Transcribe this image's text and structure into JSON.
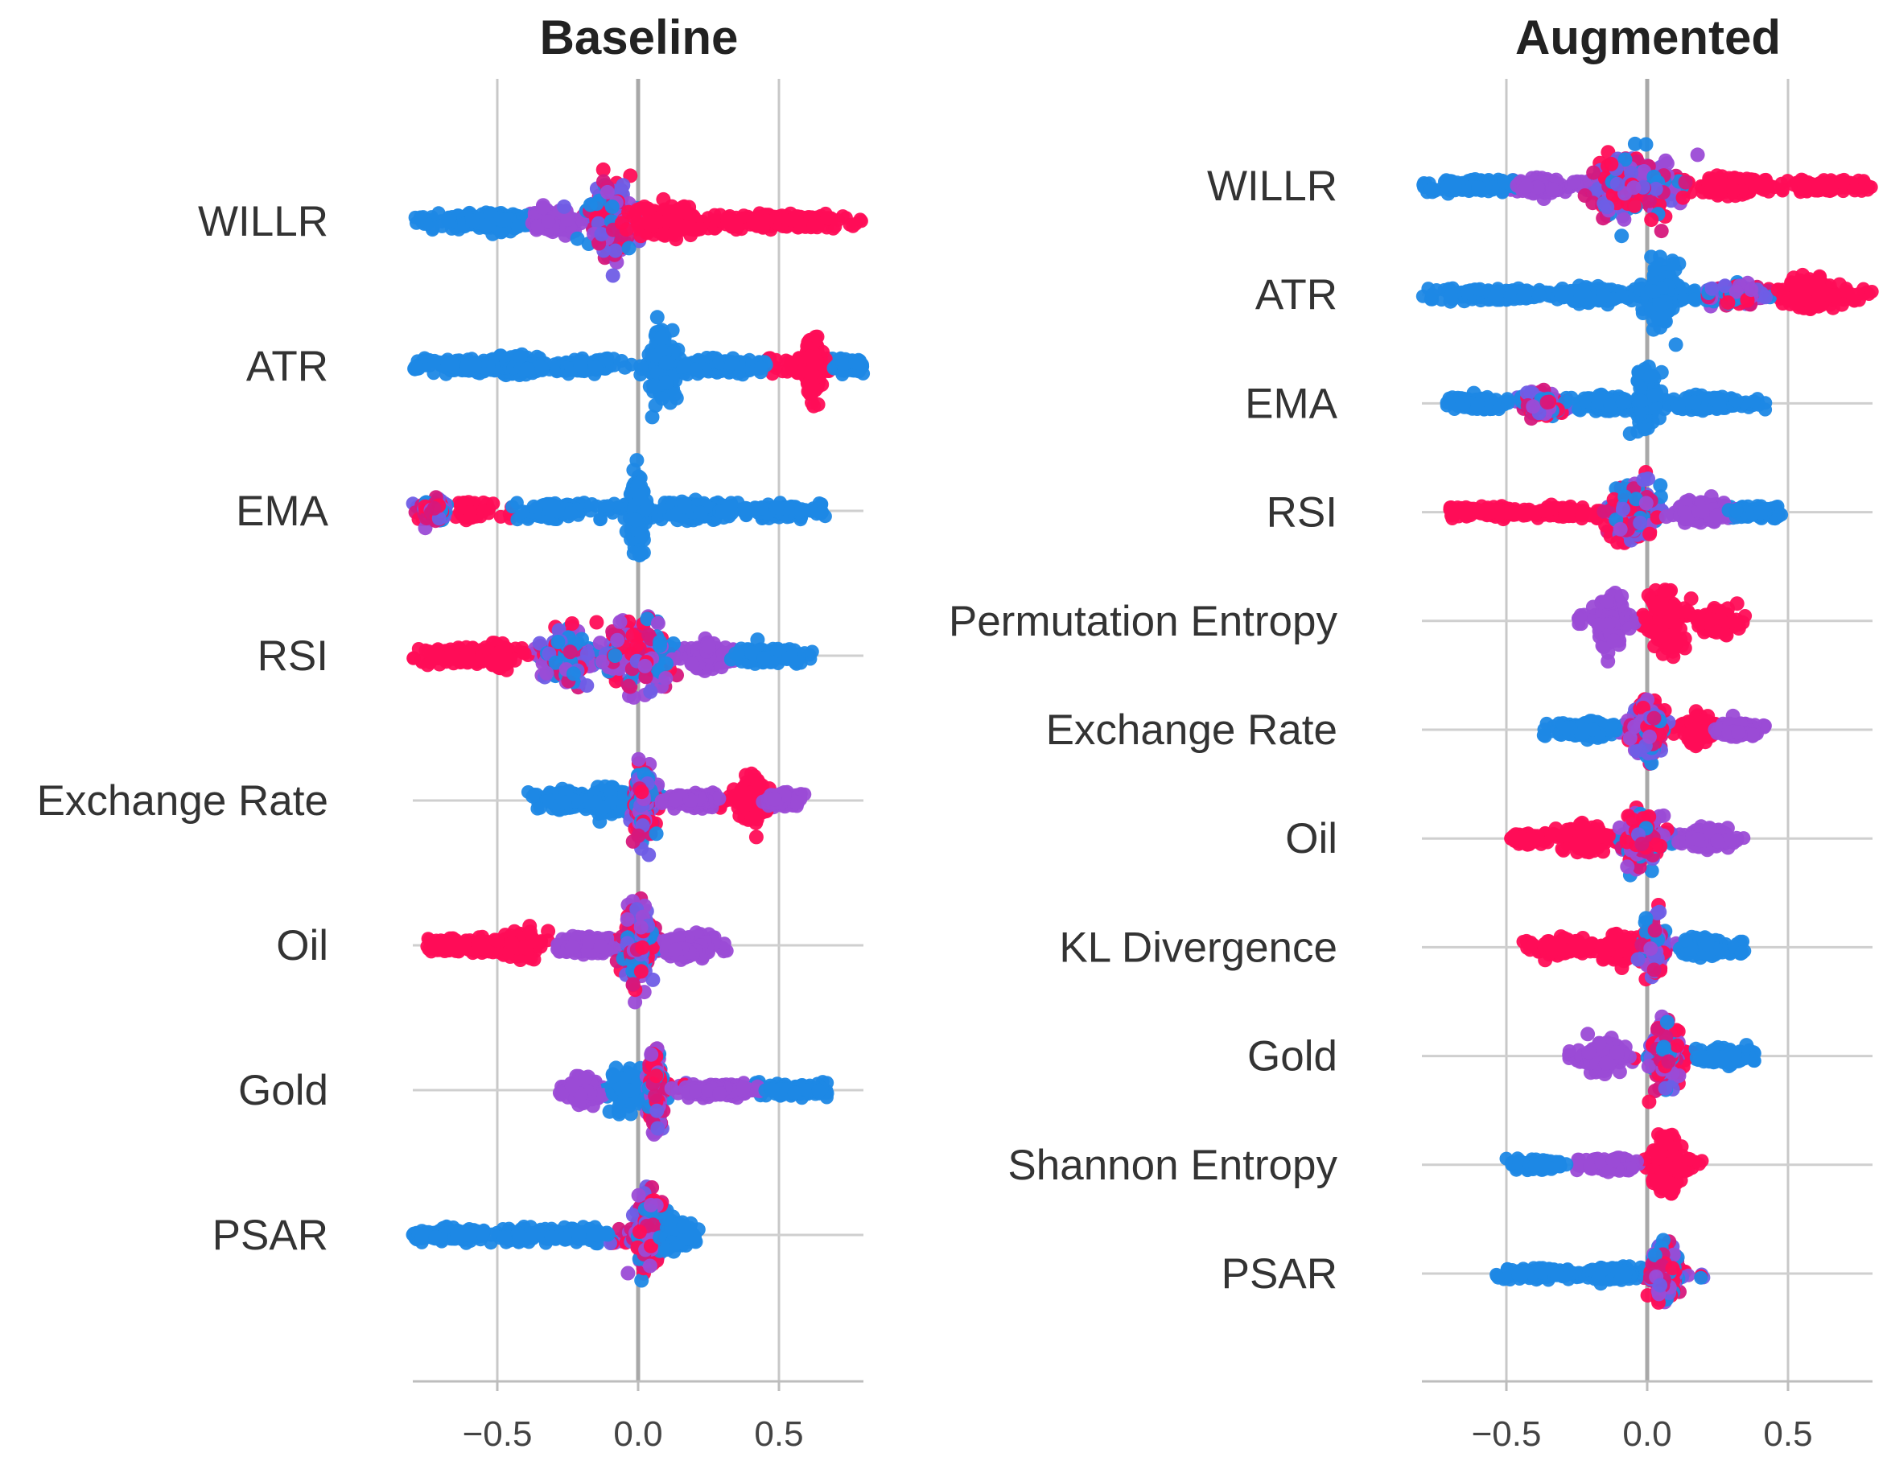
{
  "chart_data": [
    {
      "type": "scatter",
      "subtype": "beeswarm",
      "title": "Baseline",
      "xlim": [
        -0.8,
        0.8
      ],
      "xticks": [
        -0.5,
        0.0,
        0.5
      ],
      "xtick_labels": [
        "−0.5",
        "0.0",
        "0.5"
      ],
      "features": [
        {
          "name": "WILLR",
          "min": -0.8,
          "max": 0.8,
          "clusters": [
            {
              "c": -0.5,
              "s": 0.18,
              "h": 0.07,
              "color": "blue"
            },
            {
              "c": -0.3,
              "s": 0.08,
              "h": 0.1,
              "color": "purple"
            },
            {
              "c": -0.1,
              "s": 0.09,
              "h": 0.36,
              "color": "mix"
            },
            {
              "c": 0.1,
              "s": 0.12,
              "h": 0.16,
              "color": "pink"
            },
            {
              "c": 0.5,
              "s": 0.18,
              "h": 0.06,
              "color": "pink"
            }
          ]
        },
        {
          "name": "ATR",
          "min": -0.8,
          "max": 0.8,
          "clusters": [
            {
              "c": -0.6,
              "s": 0.12,
              "h": 0.05,
              "color": "blue"
            },
            {
              "c": -0.42,
              "s": 0.08,
              "h": 0.09,
              "color": "blue"
            },
            {
              "c": -0.2,
              "s": 0.1,
              "h": 0.05,
              "color": "blue"
            },
            {
              "c": 0.08,
              "s": 0.05,
              "h": 0.34,
              "color": "blue"
            },
            {
              "c": 0.3,
              "s": 0.12,
              "h": 0.06,
              "color": "blue"
            },
            {
              "c": 0.62,
              "s": 0.03,
              "h": 0.32,
              "color": "pink"
            },
            {
              "c": 0.75,
              "s": 0.04,
              "h": 0.05,
              "color": "blue"
            }
          ]
        },
        {
          "name": "EMA",
          "min": -0.8,
          "max": 0.68,
          "clusters": [
            {
              "c": -0.72,
              "s": 0.04,
              "h": 0.1,
              "color": "mix"
            },
            {
              "c": -0.6,
              "s": 0.03,
              "h": 0.08,
              "color": "pink"
            },
            {
              "c": -0.3,
              "s": 0.08,
              "h": 0.07,
              "color": "blue"
            },
            {
              "c": 0.0,
              "s": 0.03,
              "h": 0.36,
              "color": "blue"
            },
            {
              "c": 0.2,
              "s": 0.12,
              "h": 0.08,
              "color": "blue"
            },
            {
              "c": 0.5,
              "s": 0.1,
              "h": 0.04,
              "color": "blue"
            }
          ]
        },
        {
          "name": "RSI",
          "min": -0.8,
          "max": 0.62,
          "clusters": [
            {
              "c": -0.62,
              "s": 0.12,
              "h": 0.06,
              "color": "pink"
            },
            {
              "c": -0.5,
              "s": 0.05,
              "h": 0.11,
              "color": "pink"
            },
            {
              "c": -0.25,
              "s": 0.08,
              "h": 0.28,
              "color": "mix"
            },
            {
              "c": 0.0,
              "s": 0.14,
              "h": 0.34,
              "color": "mix"
            },
            {
              "c": 0.25,
              "s": 0.07,
              "h": 0.14,
              "color": "purple"
            },
            {
              "c": 0.45,
              "s": 0.1,
              "h": 0.07,
              "color": "blue"
            }
          ]
        },
        {
          "name": "Exchange Rate",
          "min": -0.4,
          "max": 0.6,
          "clusters": [
            {
              "c": -0.25,
              "s": 0.08,
              "h": 0.08,
              "color": "blue"
            },
            {
              "c": -0.1,
              "s": 0.06,
              "h": 0.14,
              "color": "blue"
            },
            {
              "c": 0.02,
              "s": 0.04,
              "h": 0.4,
              "color": "mix"
            },
            {
              "c": 0.18,
              "s": 0.08,
              "h": 0.06,
              "color": "purple"
            },
            {
              "c": 0.4,
              "s": 0.05,
              "h": 0.2,
              "color": "pink"
            },
            {
              "c": 0.52,
              "s": 0.06,
              "h": 0.06,
              "color": "purple"
            }
          ]
        },
        {
          "name": "Oil",
          "min": -0.75,
          "max": 0.32,
          "clusters": [
            {
              "c": -0.62,
              "s": 0.1,
              "h": 0.05,
              "color": "pink"
            },
            {
              "c": -0.42,
              "s": 0.07,
              "h": 0.13,
              "color": "pink"
            },
            {
              "c": -0.18,
              "s": 0.1,
              "h": 0.08,
              "color": "purple"
            },
            {
              "c": 0.0,
              "s": 0.06,
              "h": 0.36,
              "color": "mix"
            },
            {
              "c": 0.18,
              "s": 0.08,
              "h": 0.1,
              "color": "purple"
            }
          ]
        },
        {
          "name": "Gold",
          "min": -0.28,
          "max": 0.68,
          "clusters": [
            {
              "c": -0.2,
              "s": 0.06,
              "h": 0.12,
              "color": "purple"
            },
            {
              "c": -0.04,
              "s": 0.05,
              "h": 0.18,
              "color": "blue"
            },
            {
              "c": 0.06,
              "s": 0.03,
              "h": 0.36,
              "color": "mix"
            },
            {
              "c": 0.28,
              "s": 0.14,
              "h": 0.05,
              "color": "purple"
            },
            {
              "c": 0.55,
              "s": 0.1,
              "h": 0.04,
              "color": "blue"
            }
          ]
        },
        {
          "name": "PSAR",
          "min": -0.8,
          "max": 0.22,
          "clusters": [
            {
              "c": -0.65,
              "s": 0.14,
              "h": 0.04,
              "color": "blue"
            },
            {
              "c": -0.3,
              "s": 0.15,
              "h": 0.04,
              "color": "blue"
            },
            {
              "c": 0.04,
              "s": 0.05,
              "h": 0.38,
              "color": "mix"
            },
            {
              "c": 0.14,
              "s": 0.06,
              "h": 0.14,
              "color": "blue"
            }
          ]
        }
      ]
    },
    {
      "type": "scatter",
      "subtype": "beeswarm",
      "title": "Augmented",
      "xlim": [
        -0.8,
        0.8
      ],
      "xticks": [
        -0.5,
        0.0,
        0.5
      ],
      "xtick_labels": [
        "−0.5",
        "0.0",
        "0.5"
      ],
      "features": [
        {
          "name": "WILLR",
          "min": -0.8,
          "max": 0.8,
          "clusters": [
            {
              "c": -0.6,
              "s": 0.12,
              "h": 0.06,
              "color": "blue"
            },
            {
              "c": -0.38,
              "s": 0.08,
              "h": 0.1,
              "color": "purple"
            },
            {
              "c": -0.05,
              "s": 0.16,
              "h": 0.38,
              "color": "mix"
            },
            {
              "c": 0.3,
              "s": 0.1,
              "h": 0.12,
              "color": "pink"
            },
            {
              "c": 0.65,
              "s": 0.1,
              "h": 0.06,
              "color": "pink"
            }
          ]
        },
        {
          "name": "ATR",
          "min": -0.8,
          "max": 0.8,
          "clusters": [
            {
              "c": -0.55,
              "s": 0.14,
              "h": 0.06,
              "color": "blue"
            },
            {
              "c": -0.22,
              "s": 0.12,
              "h": 0.1,
              "color": "blue"
            },
            {
              "c": 0.05,
              "s": 0.06,
              "h": 0.38,
              "color": "blue"
            },
            {
              "c": 0.32,
              "s": 0.1,
              "h": 0.14,
              "color": "mix"
            },
            {
              "c": 0.58,
              "s": 0.1,
              "h": 0.2,
              "color": "pink"
            }
          ]
        },
        {
          "name": "EMA",
          "min": -0.72,
          "max": 0.42,
          "clusters": [
            {
              "c": -0.6,
              "s": 0.06,
              "h": 0.06,
              "color": "blue"
            },
            {
              "c": -0.38,
              "s": 0.07,
              "h": 0.16,
              "color": "mix"
            },
            {
              "c": -0.15,
              "s": 0.08,
              "h": 0.1,
              "color": "blue"
            },
            {
              "c": 0.0,
              "s": 0.04,
              "h": 0.4,
              "color": "blue"
            },
            {
              "c": 0.22,
              "s": 0.1,
              "h": 0.08,
              "color": "blue"
            }
          ]
        },
        {
          "name": "RSI",
          "min": -0.72,
          "max": 0.48,
          "clusters": [
            {
              "c": -0.55,
              "s": 0.1,
              "h": 0.05,
              "color": "pink"
            },
            {
              "c": -0.3,
              "s": 0.08,
              "h": 0.06,
              "color": "pink"
            },
            {
              "c": -0.05,
              "s": 0.09,
              "h": 0.36,
              "color": "mix"
            },
            {
              "c": 0.2,
              "s": 0.1,
              "h": 0.14,
              "color": "purple"
            },
            {
              "c": 0.38,
              "s": 0.07,
              "h": 0.06,
              "color": "blue"
            }
          ]
        },
        {
          "name": "Permutation Entropy",
          "min": -0.25,
          "max": 0.35,
          "clusters": [
            {
              "c": -0.13,
              "s": 0.05,
              "h": 0.34,
              "color": "purple"
            },
            {
              "c": 0.07,
              "s": 0.06,
              "h": 0.36,
              "color": "pink"
            },
            {
              "c": 0.25,
              "s": 0.06,
              "h": 0.16,
              "color": "pink"
            }
          ]
        },
        {
          "name": "Exchange Rate",
          "min": -0.38,
          "max": 0.42,
          "clusters": [
            {
              "c": -0.22,
              "s": 0.09,
              "h": 0.1,
              "color": "blue"
            },
            {
              "c": 0.0,
              "s": 0.06,
              "h": 0.38,
              "color": "mix"
            },
            {
              "c": 0.18,
              "s": 0.04,
              "h": 0.2,
              "color": "pink"
            },
            {
              "c": 0.32,
              "s": 0.06,
              "h": 0.08,
              "color": "purple"
            }
          ]
        },
        {
          "name": "Oil",
          "min": -0.5,
          "max": 0.35,
          "clusters": [
            {
              "c": -0.44,
              "s": 0.04,
              "h": 0.06,
              "color": "pink"
            },
            {
              "c": -0.22,
              "s": 0.07,
              "h": 0.18,
              "color": "pink"
            },
            {
              "c": -0.02,
              "s": 0.08,
              "h": 0.36,
              "color": "mix"
            },
            {
              "c": 0.22,
              "s": 0.08,
              "h": 0.12,
              "color": "purple"
            }
          ]
        },
        {
          "name": "KL Divergence",
          "min": -0.44,
          "max": 0.35,
          "clusters": [
            {
              "c": -0.3,
              "s": 0.07,
              "h": 0.1,
              "color": "pink"
            },
            {
              "c": -0.1,
              "s": 0.06,
              "h": 0.16,
              "color": "pink"
            },
            {
              "c": 0.02,
              "s": 0.04,
              "h": 0.38,
              "color": "mix"
            },
            {
              "c": 0.2,
              "s": 0.08,
              "h": 0.12,
              "color": "blue"
            }
          ]
        },
        {
          "name": "Gold",
          "min": -0.28,
          "max": 0.4,
          "clusters": [
            {
              "c": -0.15,
              "s": 0.06,
              "h": 0.22,
              "color": "purple"
            },
            {
              "c": 0.06,
              "s": 0.05,
              "h": 0.4,
              "color": "mix"
            },
            {
              "c": 0.26,
              "s": 0.08,
              "h": 0.1,
              "color": "blue"
            }
          ]
        },
        {
          "name": "Shannon Entropy",
          "min": -0.5,
          "max": 0.2,
          "clusters": [
            {
              "c": -0.38,
              "s": 0.08,
              "h": 0.05,
              "color": "blue"
            },
            {
              "c": -0.12,
              "s": 0.08,
              "h": 0.08,
              "color": "purple"
            },
            {
              "c": 0.07,
              "s": 0.05,
              "h": 0.36,
              "color": "pink"
            }
          ]
        },
        {
          "name": "PSAR",
          "min": -0.54,
          "max": 0.2,
          "clusters": [
            {
              "c": -0.38,
              "s": 0.1,
              "h": 0.05,
              "color": "blue"
            },
            {
              "c": -0.12,
              "s": 0.08,
              "h": 0.09,
              "color": "blue"
            },
            {
              "c": 0.06,
              "s": 0.05,
              "h": 0.38,
              "color": "mix"
            }
          ]
        }
      ]
    }
  ],
  "colors": {
    "blue": "#1e88e5",
    "pink": "#ff0d57",
    "purple": "#9b4bd6",
    "mix": [
      "#1e88e5",
      "#ff0d57",
      "#9b4bd6",
      "#6f5de6",
      "#d6187c"
    ]
  }
}
